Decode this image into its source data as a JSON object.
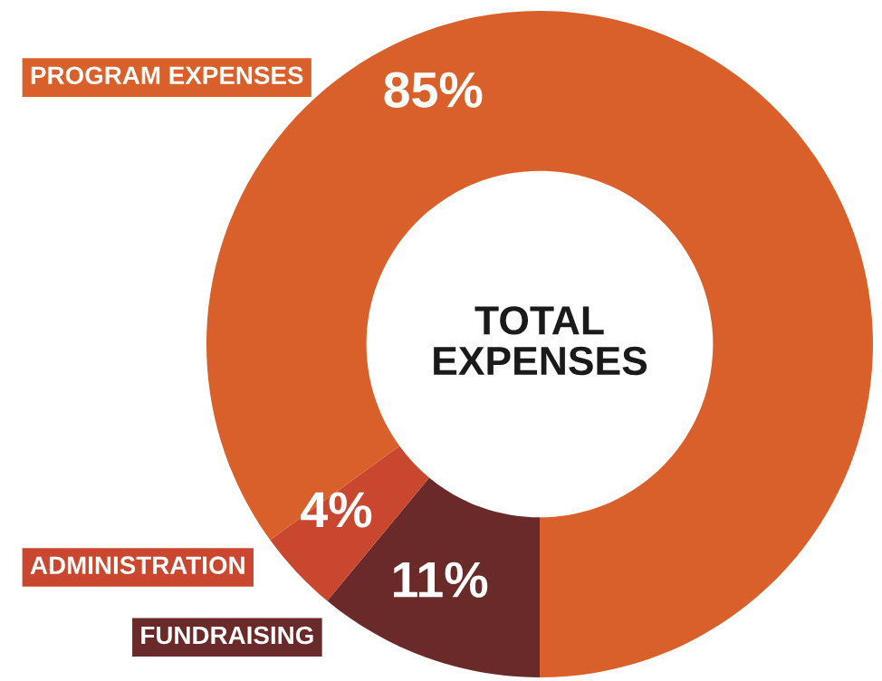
{
  "chart_data": {
    "type": "donut",
    "title": "TOTAL EXPENSES",
    "categories": [
      "FUNDRAISING",
      "ADMINISTRATION",
      "PROGRAM EXPENSES"
    ],
    "values": [
      11,
      4,
      85
    ],
    "colors": [
      "#6b2a2a",
      "#c9472e",
      "#d9602b"
    ],
    "value_labels": [
      "11%",
      "4%",
      "85%"
    ],
    "legend": false
  }
}
